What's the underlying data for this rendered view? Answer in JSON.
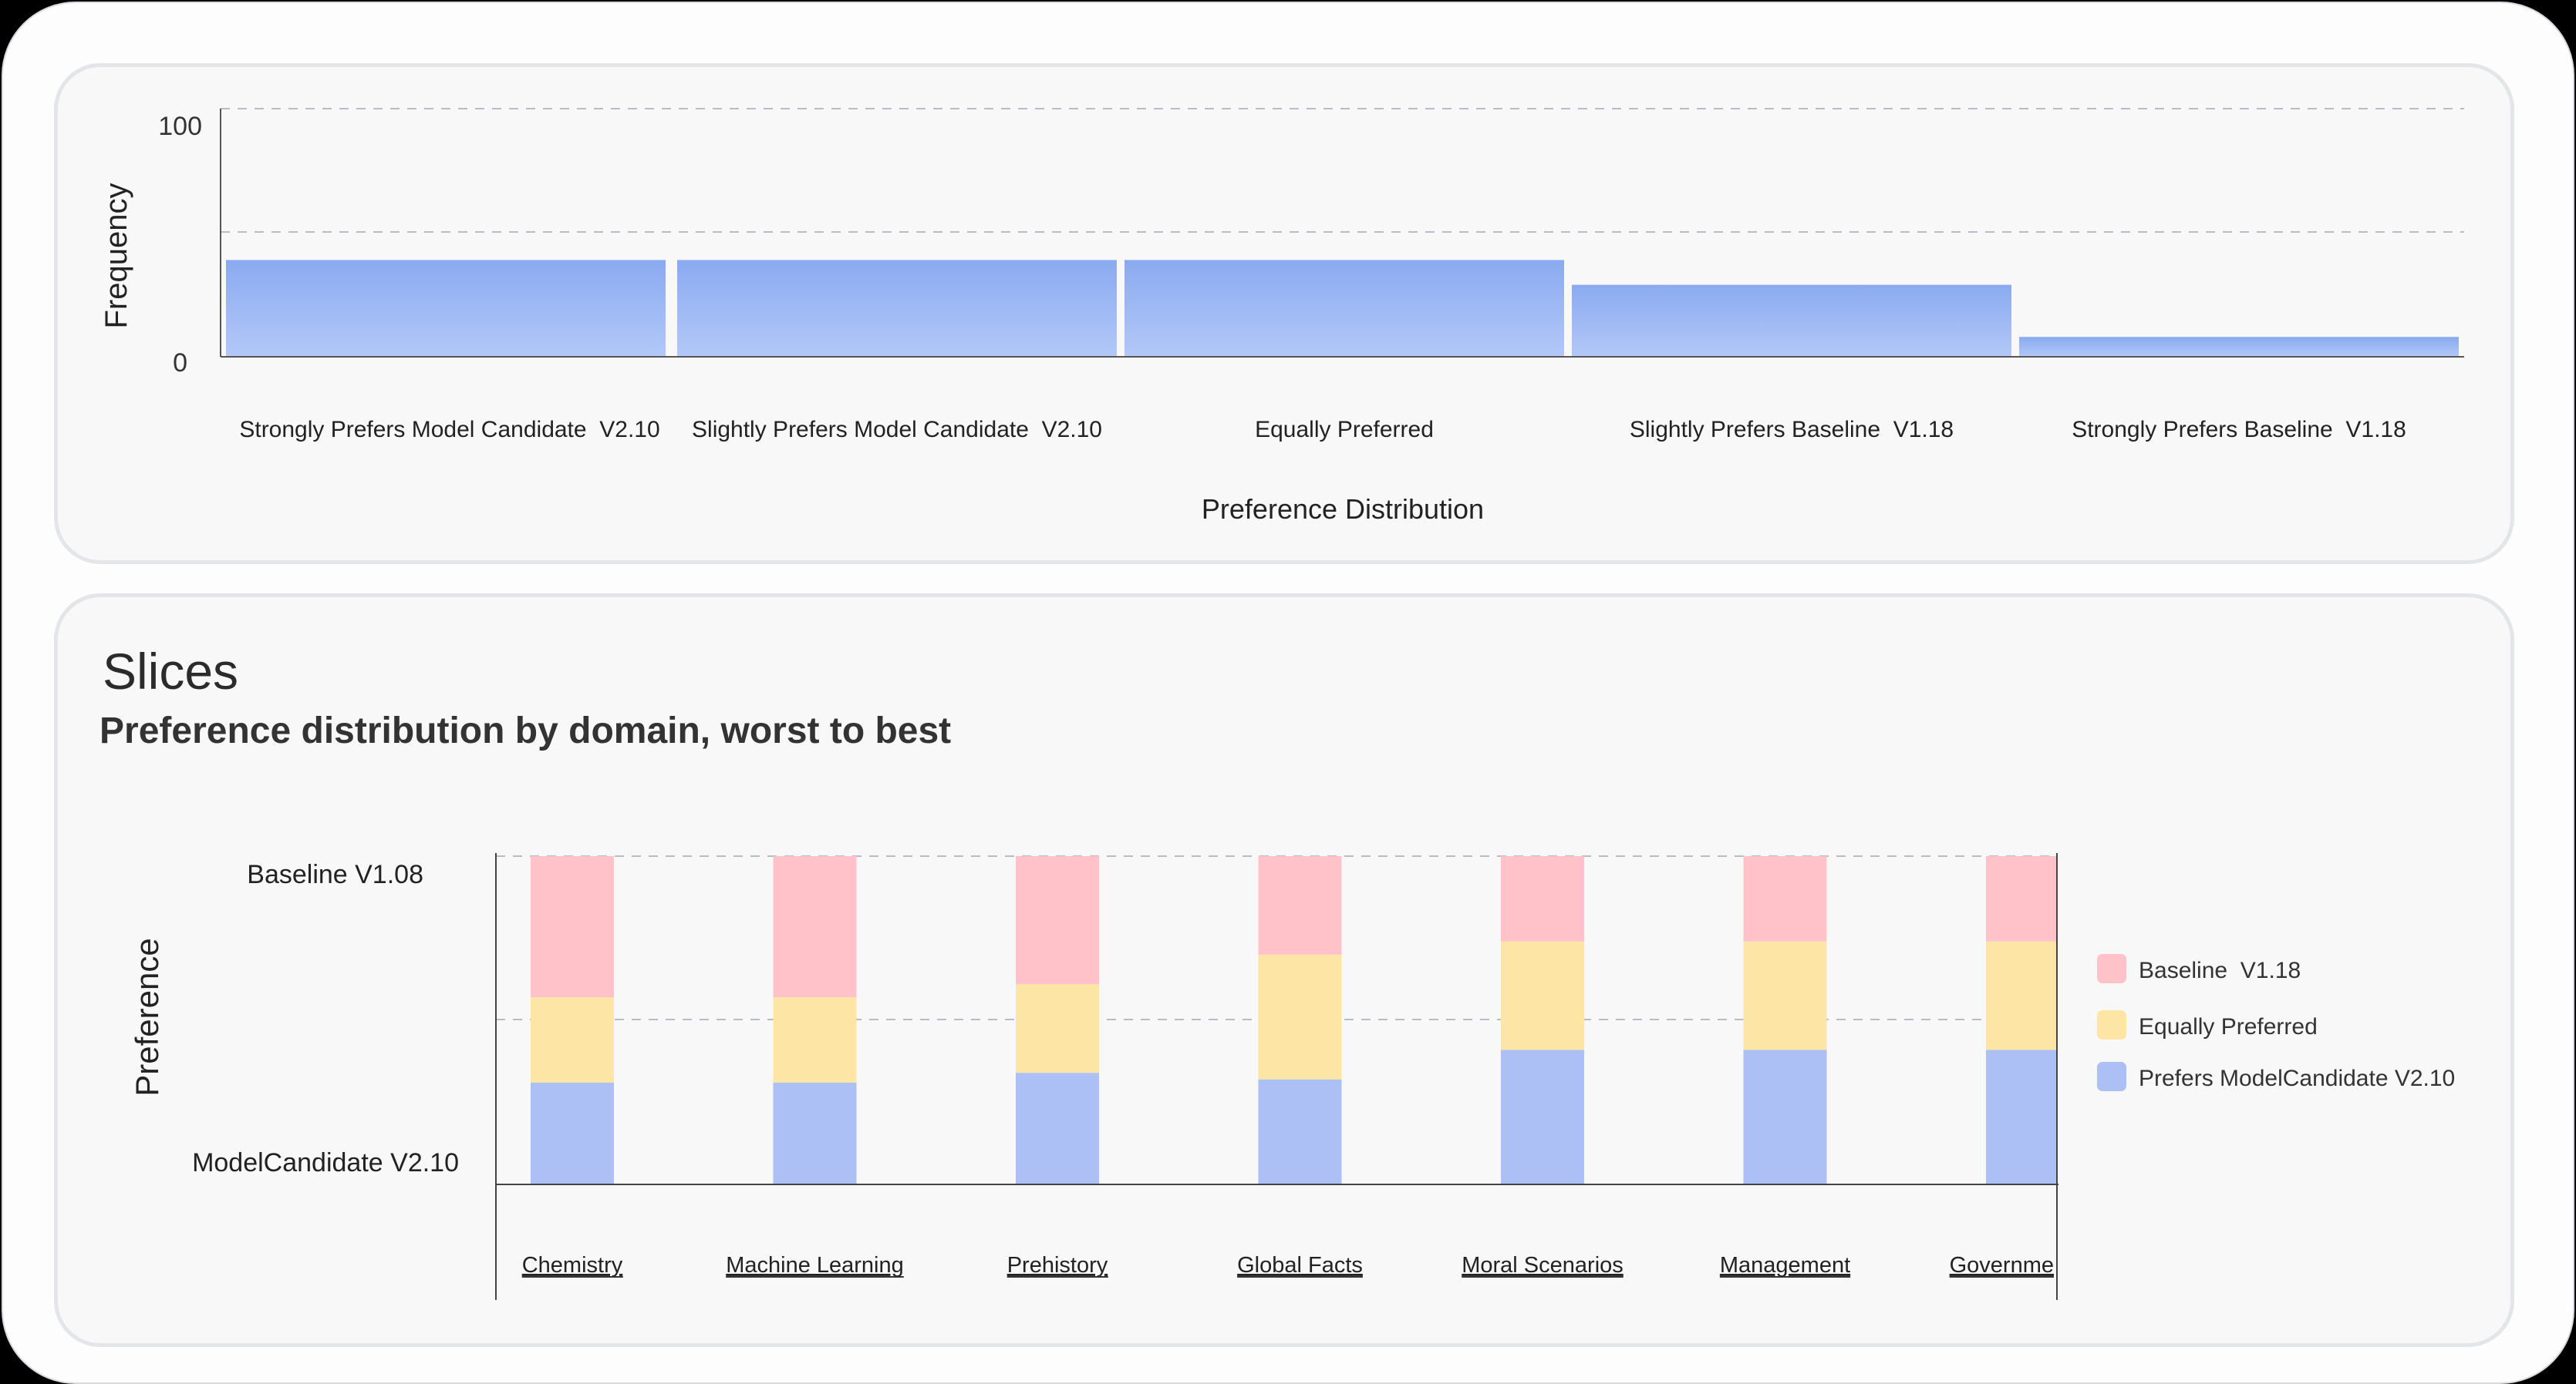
{
  "slices": {
    "title": "Slices",
    "subtitle": "Preference distribution by domain, worst to best"
  },
  "chart_data": [
    {
      "type": "bar",
      "xlabel": "Preference Distribution",
      "ylabel": "Frequency",
      "ylim": [
        0,
        100
      ],
      "yticks": [
        "0",
        "100"
      ],
      "grid": true,
      "categories": [
        "Strongly Prefers Model Candidate  V2.10",
        "Slightly Prefers Model Candidate  V2.10",
        "Equally Preferred",
        "Slightly Prefers Baseline  V1.18",
        "Strongly Prefers Baseline  V1.18"
      ],
      "values": [
        39,
        39,
        39,
        29,
        8
      ],
      "colors": {
        "bar_top": "#8aaaf0",
        "bar_bottom": "#b3c8f8"
      }
    },
    {
      "type": "bar",
      "stacked": true,
      "ylabel": "Preference",
      "ytick_labels": [
        "Baseline V1.08",
        "ModelCandidate V2.10"
      ],
      "grid": true,
      "legend_position": "right",
      "categories": [
        "Chemistry",
        "Machine Learning",
        "Prehistory",
        "Global Facts",
        "Moral Scenarios",
        "Management",
        "Governme"
      ],
      "series": [
        {
          "name": "Prefers ModelCandidate V2.10",
          "color": "#adc0f6",
          "values": [
            31,
            31,
            34,
            32,
            41,
            41,
            41
          ]
        },
        {
          "name": "Equally Preferred",
          "color": "#fde6a5",
          "values": [
            26,
            26,
            27,
            38,
            33,
            33,
            33
          ]
        },
        {
          "name": "Baseline  V1.18",
          "color": "#ffc2c9",
          "values": [
            43,
            43,
            39,
            30,
            26,
            26,
            26
          ]
        }
      ],
      "legend_order": [
        "Baseline  V1.18",
        "Equally Preferred",
        "Prefers ModelCandidate V2.10"
      ]
    }
  ]
}
